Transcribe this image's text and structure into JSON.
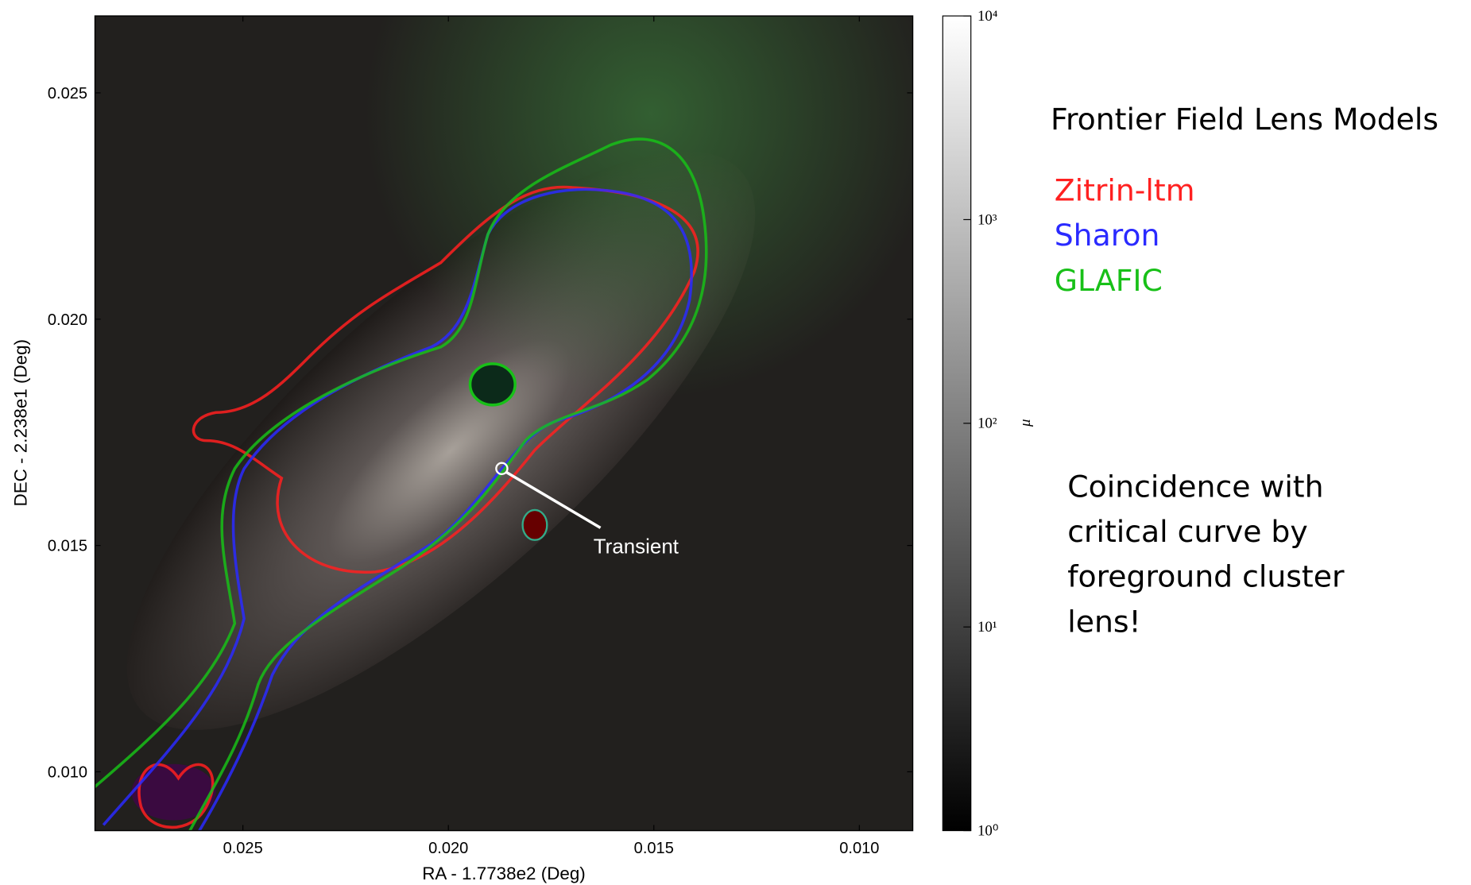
{
  "chart_data": {
    "type": "magnification-map",
    "xlabel": "RA - 1.7738e2 (Deg)",
    "ylabel": "DEC - 2.238e1 (Deg)",
    "xlim": [
      0.0286,
      0.0087
    ],
    "ylim": [
      0.0087,
      0.0267
    ],
    "xticks": [
      {
        "value": 0.025,
        "label": "0.025"
      },
      {
        "value": 0.02,
        "label": "0.020"
      },
      {
        "value": 0.015,
        "label": "0.015"
      },
      {
        "value": 0.01,
        "label": "0.010"
      }
    ],
    "yticks": [
      {
        "value": 0.025,
        "label": "0.025"
      },
      {
        "value": 0.02,
        "label": "0.020"
      },
      {
        "value": 0.015,
        "label": "0.015"
      },
      {
        "value": 0.01,
        "label": "0.010"
      }
    ],
    "colorbar": {
      "label": "μ",
      "log_scale": true,
      "lim": [
        1,
        10000
      ],
      "ticks": [
        {
          "value": 1,
          "label": "10⁰"
        },
        {
          "value": 10,
          "label": "10¹"
        },
        {
          "value": 100,
          "label": "10²"
        },
        {
          "value": 1000,
          "label": "10³"
        },
        {
          "value": 10000,
          "label": "10⁴"
        }
      ]
    },
    "legend_title": "Frontier Field Lens Models",
    "series": [
      {
        "name": "Zitrin-ltm",
        "color": "#ff2020"
      },
      {
        "name": "Sharon",
        "color": "#2a2aff"
      },
      {
        "name": "GLAFIC",
        "color": "#18c018"
      }
    ],
    "annotation": {
      "text": "Transient",
      "x": 0.0187,
      "y": 0.0167
    },
    "note": [
      "Coincidence with",
      "critical curve by",
      "foreground cluster",
      "lens!"
    ]
  }
}
